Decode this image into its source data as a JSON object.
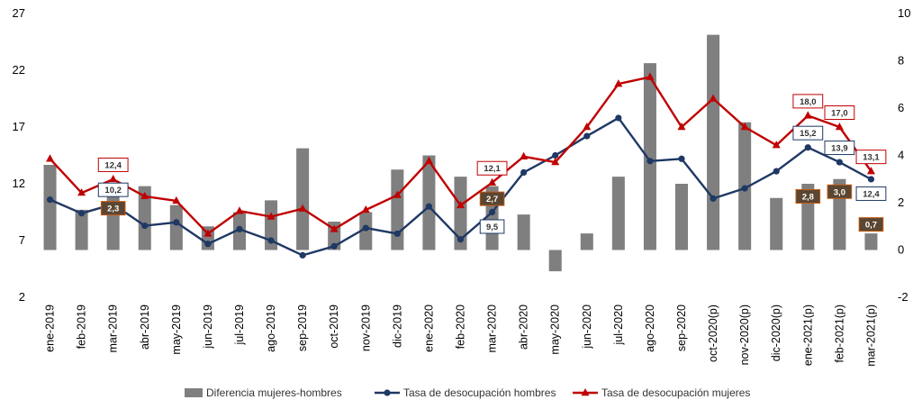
{
  "chart_data": {
    "type": "bar+line",
    "title": "",
    "xlabel": "",
    "ylabel": "",
    "categories": [
      "ene-2019",
      "feb-2019",
      "mar-2019",
      "abr-2019",
      "may-2019",
      "jun-2019",
      "jul-2019",
      "ago-2019",
      "sep-2019",
      "oct-2019",
      "nov-2019",
      "dic-2019",
      "ene-2020",
      "feb-2020",
      "mar-2020",
      "abr-2020",
      "may-2020",
      "jun-2020",
      "jul-2020",
      "ago-2020",
      "sep-2020",
      "oct-2020(p)",
      "nov-2020(p)",
      "dic-2020(p)",
      "ene-2021(p)",
      "feb-2021(p)",
      "mar-2021(p)"
    ],
    "y_left": {
      "ylim": [
        2,
        27
      ],
      "ticks": [
        2,
        7,
        12,
        17,
        22,
        27
      ]
    },
    "y_right": {
      "ylim": [
        -2,
        10
      ],
      "ticks": [
        -2,
        0,
        2,
        4,
        6,
        8,
        10
      ]
    },
    "grid": false,
    "legend_position": "bottom",
    "series": [
      {
        "name": "Diferencia mujeres-hombres",
        "type": "bar",
        "axis": "right",
        "color": "#7f7f7f",
        "values": [
          3.6,
          1.7,
          2.3,
          2.7,
          1.9,
          1.0,
          1.6,
          2.1,
          4.3,
          1.2,
          1.6,
          3.4,
          4.0,
          3.1,
          2.7,
          1.5,
          -0.9,
          0.7,
          3.1,
          7.9,
          2.8,
          9.1,
          5.4,
          2.2,
          2.8,
          3.0,
          0.7
        ]
      },
      {
        "name": "Tasa de desocupación hombres",
        "type": "line",
        "axis": "left",
        "color": "#1f3864",
        "marker": "circle",
        "values": [
          10.6,
          9.4,
          10.2,
          8.3,
          8.6,
          6.7,
          8.0,
          7.0,
          5.7,
          6.5,
          8.1,
          7.6,
          10.0,
          7.1,
          9.5,
          13.0,
          14.5,
          16.2,
          17.8,
          14.0,
          14.2,
          10.7,
          11.6,
          13.1,
          15.2,
          13.9,
          12.4
        ]
      },
      {
        "name": "Tasa de desocupación mujeres",
        "type": "line",
        "axis": "left",
        "color": "#c00000",
        "marker": "triangle",
        "values": [
          14.2,
          11.2,
          12.4,
          10.9,
          10.5,
          7.6,
          9.6,
          9.1,
          9.8,
          8.0,
          9.7,
          11.0,
          14.0,
          10.1,
          12.1,
          14.4,
          13.9,
          17.0,
          20.8,
          21.4,
          17.0,
          19.5,
          17.0,
          15.4,
          18.0,
          17.0,
          13.1
        ]
      }
    ],
    "data_labels": {
      "hombres": [
        {
          "index": 2,
          "text": "10,2"
        },
        {
          "index": 14,
          "text": "9,5"
        },
        {
          "index": 24,
          "text": "15,2"
        },
        {
          "index": 25,
          "text": "13,9"
        },
        {
          "index": 26,
          "text": "12,4"
        }
      ],
      "mujeres": [
        {
          "index": 2,
          "text": "12,4"
        },
        {
          "index": 14,
          "text": "12,1"
        },
        {
          "index": 24,
          "text": "18,0"
        },
        {
          "index": 25,
          "text": "17,0"
        },
        {
          "index": 26,
          "text": "13,1"
        }
      ],
      "diferencia": [
        {
          "index": 2,
          "text": "2,3"
        },
        {
          "index": 14,
          "text": "2,7"
        },
        {
          "index": 24,
          "text": "2,8"
        },
        {
          "index": 25,
          "text": "3,0"
        },
        {
          "index": 26,
          "text": "0,7"
        }
      ]
    }
  }
}
